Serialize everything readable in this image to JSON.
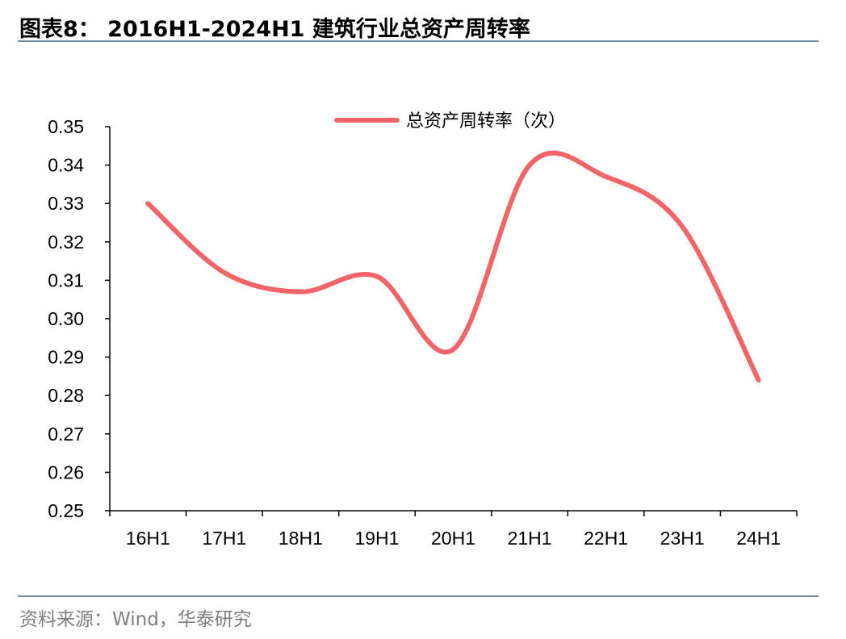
{
  "figure": {
    "title": "图表8：  2016H1-2024H1 建筑行业总资产周转率",
    "source": "资料来源：Wind，华泰研究"
  },
  "chart_data": {
    "type": "line",
    "title": "",
    "xlabel": "",
    "ylabel": "",
    "categories": [
      "16H1",
      "17H1",
      "18H1",
      "19H1",
      "20H1",
      "21H1",
      "22H1",
      "23H1",
      "24H1"
    ],
    "series": [
      {
        "name": "总资产周转率（次）",
        "values": [
          0.33,
          0.312,
          0.307,
          0.311,
          0.292,
          0.34,
          0.337,
          0.324,
          0.284
        ],
        "color": "#f0646a",
        "smooth": true
      }
    ],
    "ylim": [
      0.25,
      0.35
    ],
    "yticks": [
      "0.35",
      "0.34",
      "0.33",
      "0.32",
      "0.31",
      "0.30",
      "0.29",
      "0.28",
      "0.27",
      "0.26",
      "0.25"
    ],
    "grid": false,
    "legend_position": "top-right"
  }
}
